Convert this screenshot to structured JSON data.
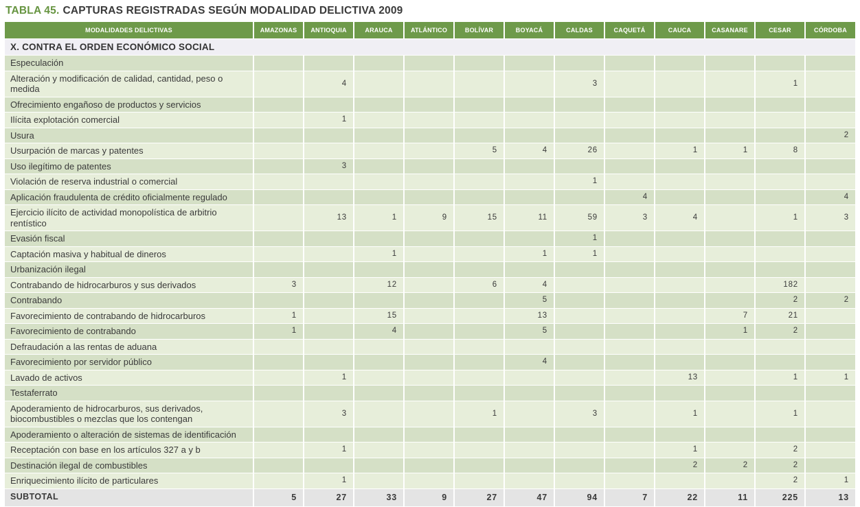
{
  "title": {
    "tag": "TABLA 45.",
    "text": "CAPTURAS REGISTRADAS SEGÚN MODALIDAD DELICTIVA 2009"
  },
  "table": {
    "label_header": "MODALIDADES DELICTIVAS",
    "columns": [
      "AMAZONAS",
      "ANTIOQUIA",
      "ARAUCA",
      "ATLÁNTICO",
      "BOLÍVAR",
      "BOYACÁ",
      "CALDAS",
      "CAQUETÁ",
      "CAUCA",
      "CASANARE",
      "CESAR",
      "CÓRDOBA"
    ],
    "section": "X. CONTRA EL ORDEN ECONÓMICO SOCIAL",
    "rows": [
      {
        "label": "Especulación",
        "values": [
          "",
          "",
          "",
          "",
          "",
          "",
          "",
          "",
          "",
          "",
          "",
          ""
        ]
      },
      {
        "label": "Alteración y modificación de calidad, cantidad, peso o medida",
        "values": [
          "",
          "4",
          "",
          "",
          "",
          "",
          "3",
          "",
          "",
          "",
          "1",
          ""
        ]
      },
      {
        "label": "Ofrecimiento engañoso de productos y servicios",
        "values": [
          "",
          "",
          "",
          "",
          "",
          "",
          "",
          "",
          "",
          "",
          "",
          ""
        ]
      },
      {
        "label": "Ilícita explotación comercial",
        "values": [
          "",
          "1",
          "",
          "",
          "",
          "",
          "",
          "",
          "",
          "",
          "",
          ""
        ]
      },
      {
        "label": "Usura",
        "values": [
          "",
          "",
          "",
          "",
          "",
          "",
          "",
          "",
          "",
          "",
          "",
          "2"
        ]
      },
      {
        "label": "Usurpación de marcas y patentes",
        "values": [
          "",
          "",
          "",
          "",
          "5",
          "4",
          "26",
          "",
          "1",
          "1",
          "8",
          ""
        ]
      },
      {
        "label": "Uso ilegítimo de patentes",
        "values": [
          "",
          "3",
          "",
          "",
          "",
          "",
          "",
          "",
          "",
          "",
          "",
          ""
        ]
      },
      {
        "label": "Violación de reserva industrial o comercial",
        "values": [
          "",
          "",
          "",
          "",
          "",
          "",
          "1",
          "",
          "",
          "",
          "",
          ""
        ]
      },
      {
        "label": "Aplicación fraudulenta de crédito oficialmente regulado",
        "values": [
          "",
          "",
          "",
          "",
          "",
          "",
          "",
          "4",
          "",
          "",
          "",
          "4"
        ]
      },
      {
        "label": "Ejercicio ilícito de actividad monopolística de arbitrio rentístico",
        "values": [
          "",
          "13",
          "1",
          "9",
          "15",
          "11",
          "59",
          "3",
          "4",
          "",
          "1",
          "3"
        ]
      },
      {
        "label": "Evasión fiscal",
        "values": [
          "",
          "",
          "",
          "",
          "",
          "",
          "1",
          "",
          "",
          "",
          "",
          ""
        ]
      },
      {
        "label": "Captación masiva y habitual de dineros",
        "values": [
          "",
          "",
          "1",
          "",
          "",
          "1",
          "1",
          "",
          "",
          "",
          "",
          ""
        ]
      },
      {
        "label": "Urbanización ilegal",
        "values": [
          "",
          "",
          "",
          "",
          "",
          "",
          "",
          "",
          "",
          "",
          "",
          ""
        ]
      },
      {
        "label": "Contrabando de hidrocarburos y sus derivados",
        "values": [
          "3",
          "",
          "12",
          "",
          "6",
          "4",
          "",
          "",
          "",
          "",
          "182",
          ""
        ]
      },
      {
        "label": "Contrabando",
        "values": [
          "",
          "",
          "",
          "",
          "",
          "5",
          "",
          "",
          "",
          "",
          "2",
          "2"
        ]
      },
      {
        "label": "Favorecimiento de contrabando de hidrocarburos",
        "values": [
          "1",
          "",
          "15",
          "",
          "",
          "13",
          "",
          "",
          "",
          "7",
          "21",
          ""
        ]
      },
      {
        "label": "Favorecimiento de contrabando",
        "values": [
          "1",
          "",
          "4",
          "",
          "",
          "5",
          "",
          "",
          "",
          "1",
          "2",
          ""
        ]
      },
      {
        "label": "Defraudación a las rentas de aduana",
        "values": [
          "",
          "",
          "",
          "",
          "",
          "",
          "",
          "",
          "",
          "",
          "",
          ""
        ]
      },
      {
        "label": "Favorecimiento por servidor público",
        "values": [
          "",
          "",
          "",
          "",
          "",
          "4",
          "",
          "",
          "",
          "",
          "",
          ""
        ]
      },
      {
        "label": "Lavado de activos",
        "values": [
          "",
          "1",
          "",
          "",
          "",
          "",
          "",
          "",
          "13",
          "",
          "1",
          "1"
        ]
      },
      {
        "label": "Testaferrato",
        "values": [
          "",
          "",
          "",
          "",
          "",
          "",
          "",
          "",
          "",
          "",
          "",
          ""
        ]
      },
      {
        "label": "Apoderamiento de hidrocarburos, sus derivados, biocombustibles o mezclas que los contengan",
        "values": [
          "",
          "3",
          "",
          "",
          "1",
          "",
          "3",
          "",
          "1",
          "",
          "1",
          ""
        ]
      },
      {
        "label": "Apoderamiento o alteración de sistemas de identificación",
        "values": [
          "",
          "",
          "",
          "",
          "",
          "",
          "",
          "",
          "",
          "",
          "",
          ""
        ]
      },
      {
        "label": "Receptación con base en los artículos 327 a y b",
        "values": [
          "",
          "1",
          "",
          "",
          "",
          "",
          "",
          "",
          "1",
          "",
          "2",
          ""
        ]
      },
      {
        "label": "Destinación ilegal de combustibles",
        "values": [
          "",
          "",
          "",
          "",
          "",
          "",
          "",
          "",
          "2",
          "2",
          "2",
          ""
        ]
      },
      {
        "label": "Enriquecimiento ilícito de particulares",
        "values": [
          "",
          "1",
          "",
          "",
          "",
          "",
          "",
          "",
          "",
          "",
          "2",
          "1"
        ]
      }
    ],
    "subtotal": {
      "label": "SUBTOTAL",
      "values": [
        "5",
        "27",
        "33",
        "9",
        "27",
        "47",
        "94",
        "7",
        "22",
        "11",
        "225",
        "13"
      ]
    }
  },
  "colors": {
    "header_bg": "#6e9a4a",
    "row_dark": "#d5e0c6",
    "row_light": "#e7eeda",
    "section_bg": "#f0eff4",
    "subtotal_bg": "#e4e4e4",
    "title_accent": "#669440",
    "text": "#3a3a3a"
  }
}
